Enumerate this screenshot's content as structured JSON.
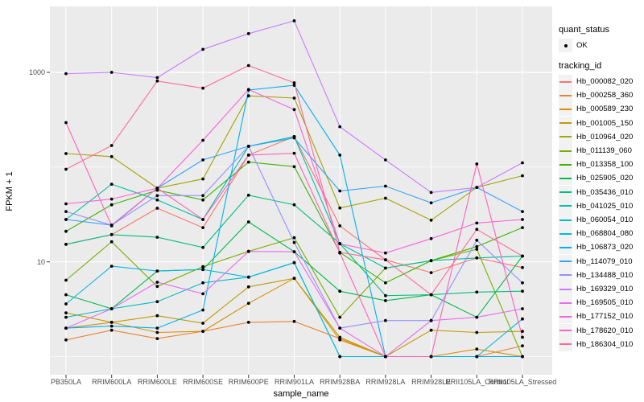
{
  "figure": {
    "background": "#ffffff",
    "panel_background": "#ebebeb",
    "grid_color": "#ffffff",
    "tick_color": "#333333",
    "tick_label_color": "#4d4d4d",
    "point_color": "#000000"
  },
  "axes": {
    "x_title": "sample_name",
    "y_title": "FPKM + 1",
    "y_tick_labels": [
      "1000",
      "10"
    ]
  },
  "legend": {
    "quant_status_title": "quant_status",
    "ok_label": "OK",
    "tracking_title": "tracking_id"
  },
  "chart_data": {
    "type": "line",
    "title": "",
    "xlabel": "sample_name",
    "ylabel": "FPKM + 1",
    "y_scale": "log10",
    "y_ticks": [
      1000,
      10
    ],
    "y_minor_gridlines": [
      100,
      1
    ],
    "ylim": [
      0.67,
      5000
    ],
    "legend_position": "right",
    "grid": true,
    "point_shape": "filled-circle",
    "quant_status_all": "OK",
    "categories": [
      "PB350LA",
      "RRIM600LA",
      "RRIM600LE",
      "RRIM600SE",
      "RRIM600PE",
      "RRIM901LA",
      "RRIM928BA",
      "RRIM928LA",
      "RRIM928LE",
      "RRII105LA_Control",
      "RRII105LA_Stressed"
    ],
    "series": [
      {
        "name": "Hb_000082_020",
        "color": "#F8766D",
        "values": [
          15.3,
          19.4,
          36.8,
          23,
          134,
          210,
          24,
          10.5,
          7.7,
          11,
          8.7
        ]
      },
      {
        "name": "Hb_000258_360",
        "color": "#EA8331",
        "values": [
          1.5,
          1.9,
          1.55,
          1.85,
          2.3,
          2.35,
          1.55,
          1,
          1,
          1,
          1.3
        ]
      },
      {
        "name": "Hb_000589_230",
        "color": "#D89000",
        "values": [
          2.0,
          2.3,
          1.8,
          1.85,
          3.65,
          6.7,
          1.5,
          1,
          1,
          1.2,
          1
        ]
      },
      {
        "name": "Hb_001005_150",
        "color": "#C09B00",
        "values": [
          2.9,
          2.3,
          2.7,
          2.25,
          5.45,
          6.7,
          1.6,
          1,
          1.9,
          1.8,
          1.85
        ]
      },
      {
        "name": "Hb_010964_020",
        "color": "#A3A500",
        "values": [
          139,
          129,
          60,
          75,
          565,
          535,
          37,
          47,
          27.5,
          61,
          81
        ]
      },
      {
        "name": "Hb_011139_060",
        "color": "#7CAE00",
        "values": [
          6.4,
          16.3,
          5.5,
          8.9,
          12.9,
          18,
          2.6,
          8.6,
          10.3,
          13.6,
          1
        ]
      },
      {
        "name": "Hb_013358_100",
        "color": "#39B600",
        "values": [
          21,
          40,
          57,
          45,
          113,
          101,
          12.6,
          6,
          10.3,
          14.5,
          23
        ]
      },
      {
        "name": "Hb_025905_020",
        "color": "#00BB4E",
        "values": [
          4.5,
          3.2,
          8,
          8.3,
          26.4,
          12.8,
          4.9,
          3.9,
          4.5,
          2.6,
          11.5
        ]
      },
      {
        "name": "Hb_035436_010",
        "color": "#00BF7D",
        "values": [
          15.3,
          19.4,
          18.2,
          14.2,
          50.5,
          40,
          15.6,
          4.4,
          4.5,
          4.8,
          4.9
        ]
      },
      {
        "name": "Hb_041025_010",
        "color": "#00C1A3",
        "values": [
          28,
          66,
          45,
          28,
          166,
          210,
          15.6,
          8.6,
          10.3,
          11,
          11.5
        ]
      },
      {
        "name": "Hb_060054_010",
        "color": "#00BFC4",
        "values": [
          2.6,
          3.2,
          3.8,
          6,
          6.9,
          9.8,
          1,
          1,
          1,
          1,
          1
        ]
      },
      {
        "name": "Hb_068804_080",
        "color": "#00BAE0",
        "values": [
          3.6,
          9,
          8,
          8.3,
          6.9,
          9.8,
          1,
          1,
          1,
          1,
          2.5
        ]
      },
      {
        "name": "Hb_106873_020",
        "color": "#00B0F6",
        "values": [
          2.0,
          2.1,
          2.0,
          3.1,
          650,
          730,
          134,
          1,
          1,
          1,
          1
        ]
      },
      {
        "name": "Hb_114079_010",
        "color": "#35A2FF",
        "values": [
          28,
          24.4,
          60,
          119,
          166,
          203,
          56,
          63,
          42,
          61,
          34
        ]
      },
      {
        "name": "Hb_134488_010",
        "color": "#9590FF",
        "values": [
          34,
          24.4,
          50,
          50,
          166,
          16,
          2.0,
          2.4,
          2.4,
          16.9,
          6
        ]
      },
      {
        "name": "Hb_169329_010",
        "color": "#C77CFF",
        "values": [
          970,
          1000,
          880,
          1750,
          2565,
          3500,
          267,
          119,
          54,
          61,
          111
        ]
      },
      {
        "name": "Hb_169505_010",
        "color": "#E76BF3",
        "values": [
          2.0,
          3.2,
          6.1,
          4.6,
          12.9,
          12.8,
          2.0,
          1,
          2.4,
          2.6,
          3.2
        ]
      },
      {
        "name": "Hb_177152_010",
        "color": "#FA62DB",
        "values": [
          41,
          46,
          60,
          192,
          660,
          405,
          15.5,
          12.4,
          17.6,
          25.7,
          28
        ]
      },
      {
        "name": "Hb_178620_010",
        "color": "#FF62BC",
        "values": [
          295,
          24,
          60,
          28,
          134,
          140,
          12.4,
          1,
          1,
          108,
          1.6
        ]
      },
      {
        "name": "Hb_186304_010",
        "color": "#FF6A98",
        "values": [
          95,
          169,
          810,
          680,
          1180,
          775,
          12.6,
          10.5,
          4.5,
          22,
          11.5
        ]
      }
    ]
  }
}
